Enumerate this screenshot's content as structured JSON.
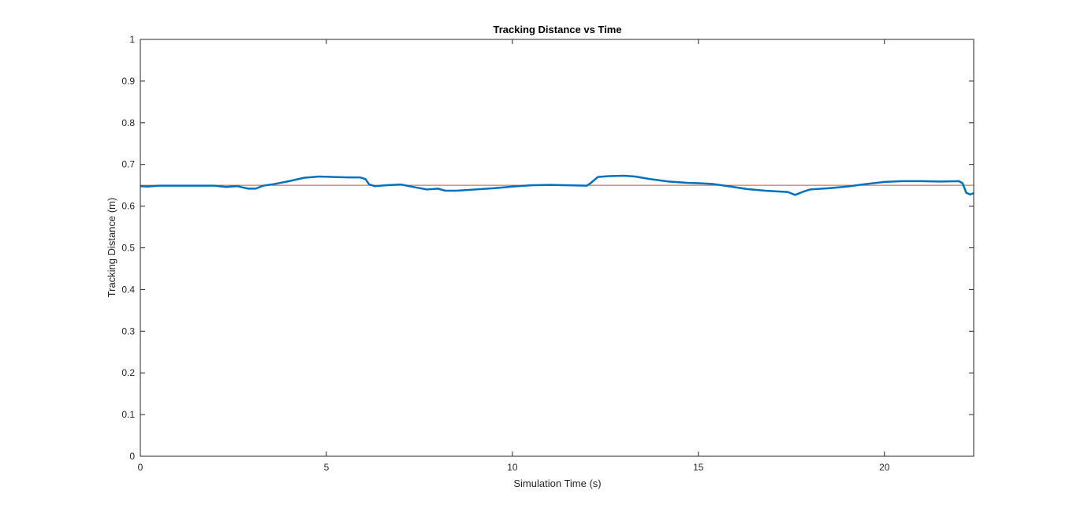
{
  "chart_data": {
    "type": "line",
    "title": "Tracking Distance vs Time",
    "xlabel": "Simulation Time (s)",
    "ylabel": "Tracking Distance (m)",
    "xlim": [
      0,
      22.4
    ],
    "ylim": [
      0,
      1
    ],
    "xticks": [
      0,
      5,
      10,
      15,
      20
    ],
    "yticks": [
      0,
      0.1,
      0.2,
      0.3,
      0.4,
      0.5,
      0.6,
      0.7,
      0.8,
      0.9,
      1
    ],
    "xtick_labels": [
      "0",
      "5",
      "10",
      "15",
      "20"
    ],
    "ytick_labels": [
      "0",
      "0.1",
      "0.2",
      "0.3",
      "0.4",
      "0.5",
      "0.6",
      "0.7",
      "0.8",
      "0.9",
      "1"
    ],
    "grid": false,
    "box": true,
    "series": [
      {
        "color": "#0072BD",
        "x": [
          0,
          0.2,
          0.5,
          1.0,
          1.5,
          2.0,
          2.3,
          2.6,
          2.9,
          3.1,
          3.3,
          3.6,
          4.0,
          4.4,
          4.8,
          5.2,
          5.6,
          5.9,
          6.05,
          6.15,
          6.3,
          6.6,
          7.0,
          7.4,
          7.7,
          8.0,
          8.2,
          8.5,
          9.0,
          9.5,
          10.0,
          10.5,
          11.0,
          11.5,
          12.0,
          12.1,
          12.3,
          12.6,
          13.0,
          13.3,
          13.7,
          14.2,
          14.7,
          15.0,
          15.4,
          15.8,
          16.3,
          16.8,
          17.2,
          17.4,
          17.6,
          17.8,
          18.0,
          18.5,
          19.0,
          19.5,
          20.0,
          20.5,
          21.0,
          21.5,
          22.0,
          22.1,
          22.2,
          22.3,
          22.4
        ],
        "y": [
          0.648,
          0.647,
          0.649,
          0.649,
          0.649,
          0.649,
          0.646,
          0.648,
          0.642,
          0.642,
          0.649,
          0.653,
          0.66,
          0.668,
          0.671,
          0.67,
          0.669,
          0.669,
          0.665,
          0.652,
          0.648,
          0.65,
          0.652,
          0.645,
          0.64,
          0.642,
          0.637,
          0.637,
          0.64,
          0.643,
          0.647,
          0.65,
          0.651,
          0.65,
          0.649,
          0.655,
          0.67,
          0.672,
          0.673,
          0.671,
          0.665,
          0.659,
          0.656,
          0.655,
          0.653,
          0.648,
          0.641,
          0.637,
          0.635,
          0.634,
          0.627,
          0.634,
          0.64,
          0.643,
          0.647,
          0.653,
          0.658,
          0.66,
          0.66,
          0.659,
          0.66,
          0.655,
          0.632,
          0.628,
          0.631
        ]
      },
      {
        "color": "#D95319",
        "x": [
          0,
          22.4
        ],
        "y": [
          0.65,
          0.65
        ]
      }
    ]
  }
}
